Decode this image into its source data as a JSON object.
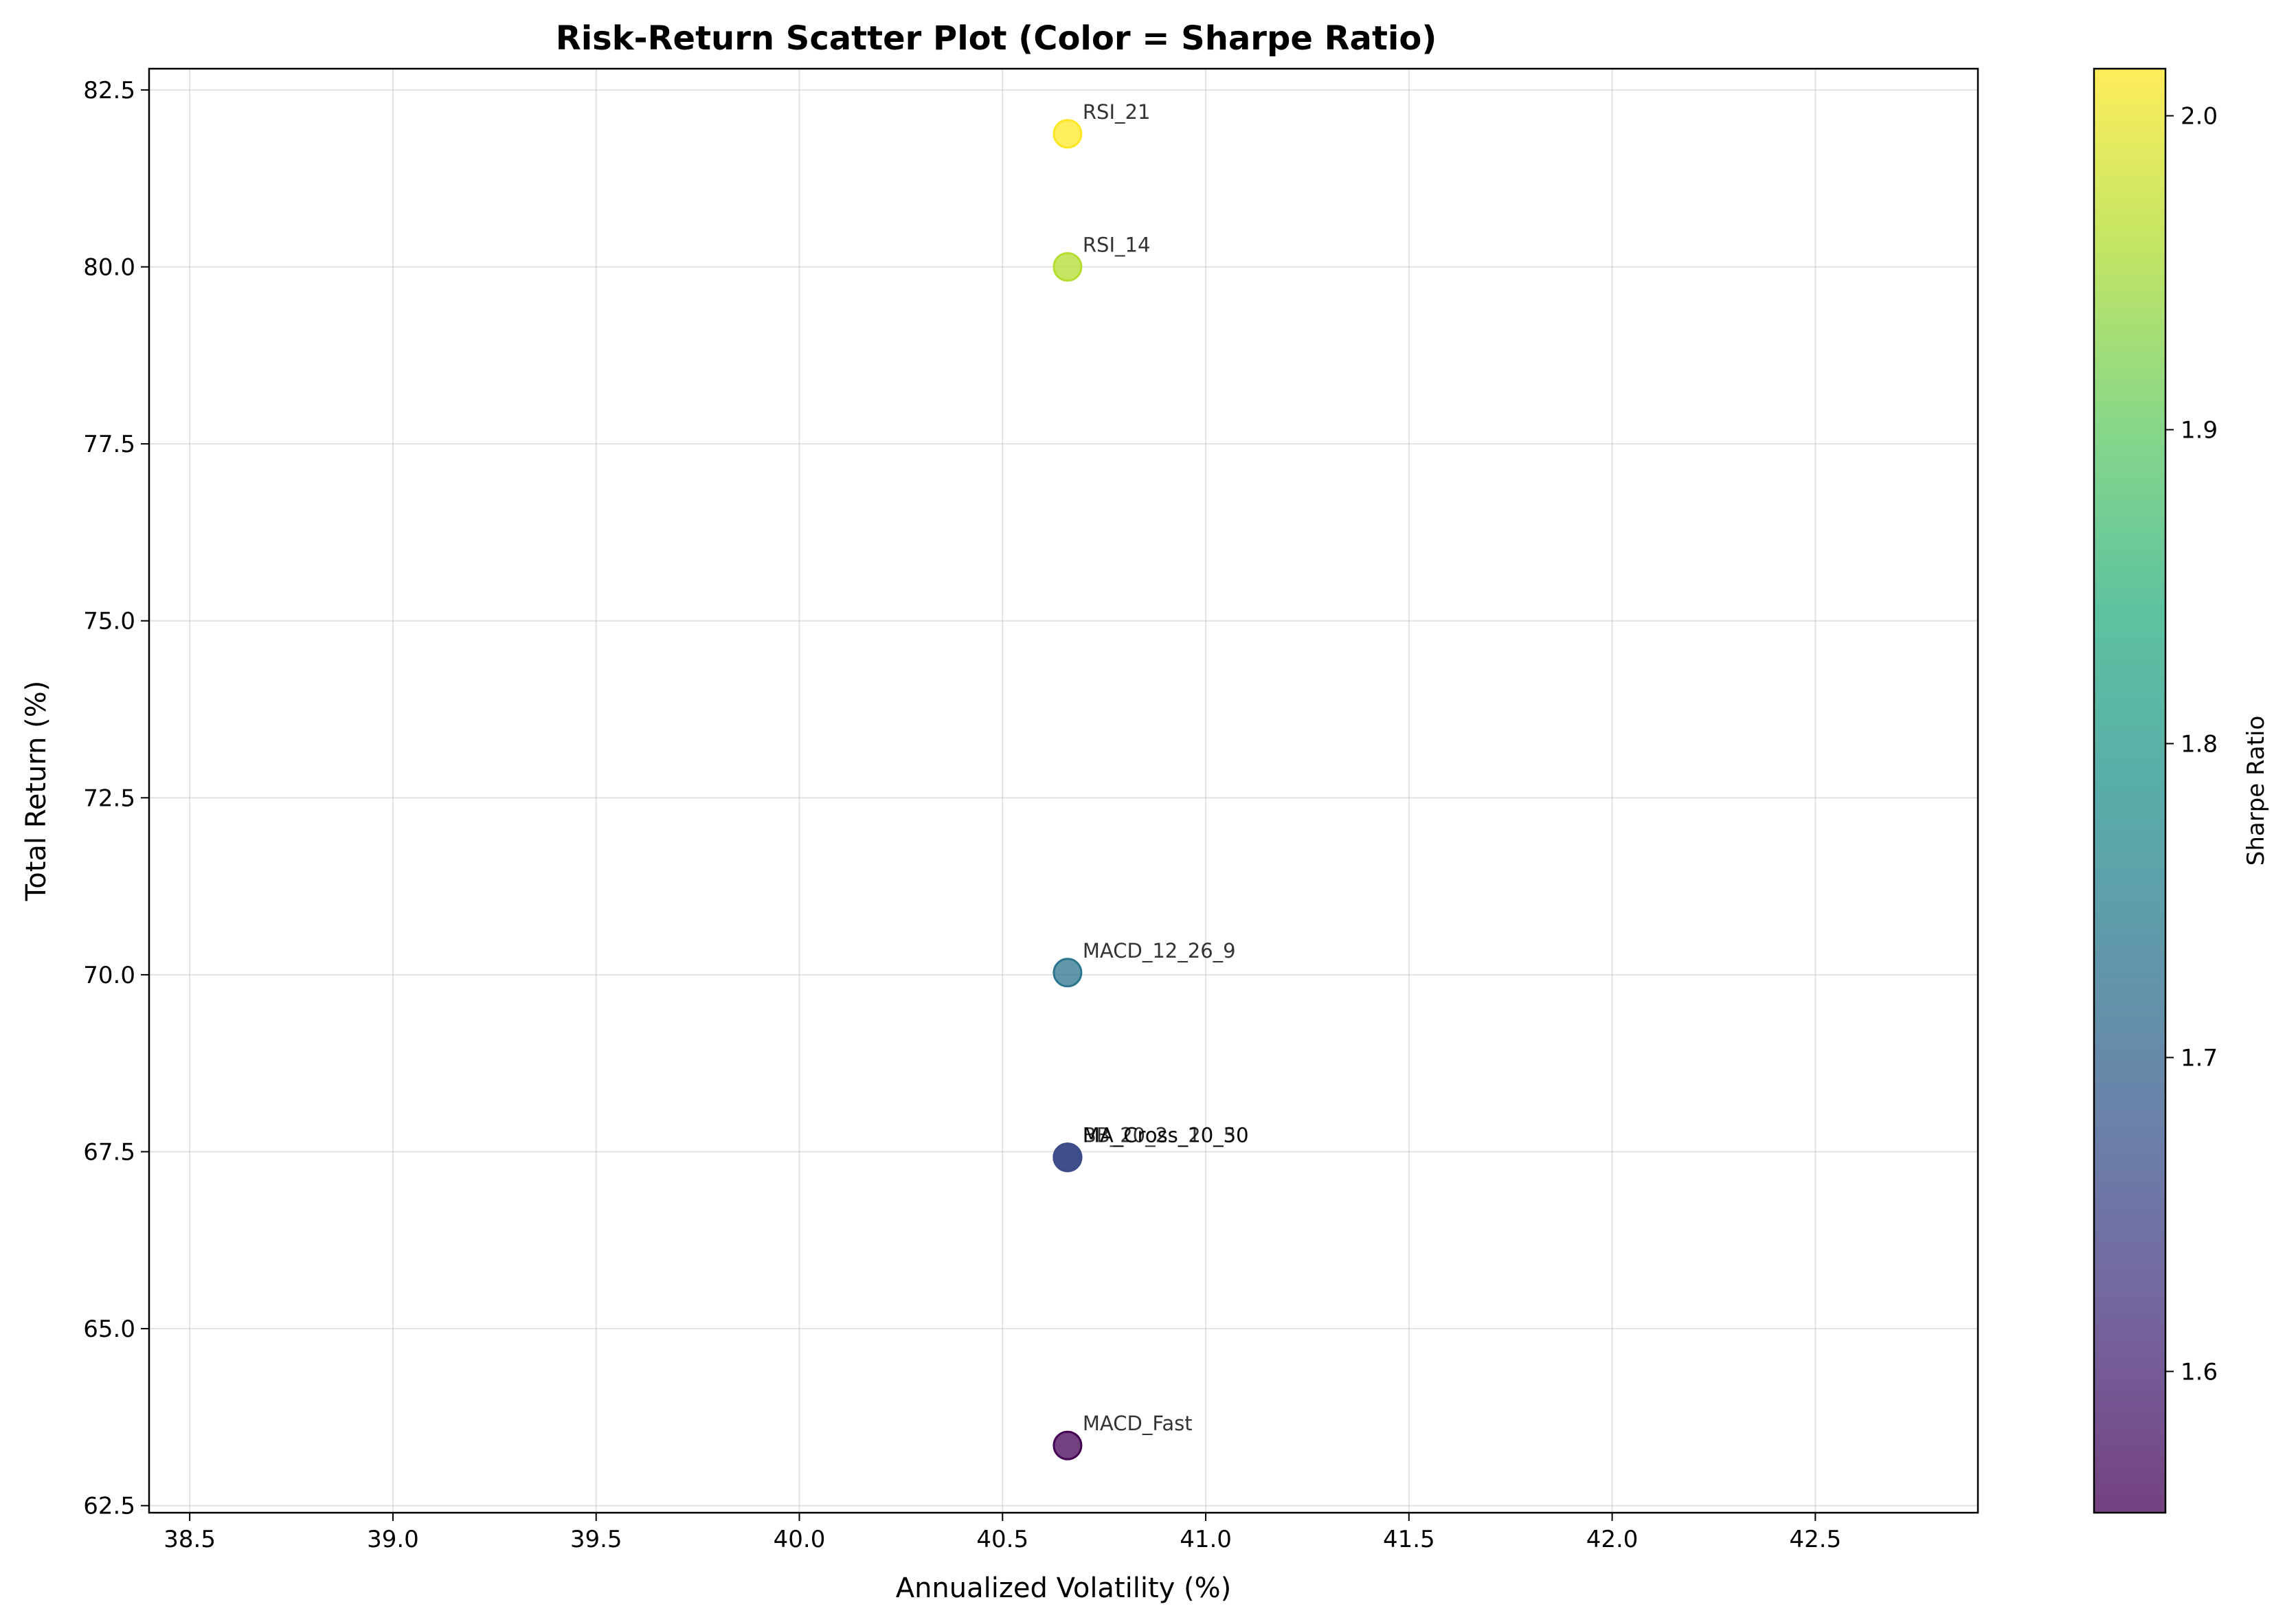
{
  "chart_data": {
    "type": "scatter",
    "title": "Risk-Return Scatter Plot (Color = Sharpe Ratio)",
    "xlabel": "Annualized Volatility (%)",
    "ylabel": "Total Return (%)",
    "xlim": [
      38.4,
      42.9
    ],
    "ylim": [
      62.4,
      82.8
    ],
    "xticks": [
      "38.5",
      "39.0",
      "39.5",
      "40.0",
      "40.5",
      "41.0",
      "41.5",
      "42.0",
      "42.5"
    ],
    "yticks": [
      "62.5",
      "65.0",
      "67.5",
      "70.0",
      "72.5",
      "75.0",
      "77.5",
      "80.0",
      "82.5"
    ],
    "grid": true,
    "colormap": "viridis",
    "colorbar": {
      "label": "Sharpe Ratio",
      "range": [
        1.555,
        2.015
      ],
      "ticks": [
        "1.6",
        "1.7",
        "1.8",
        "1.9",
        "2.0"
      ]
    },
    "points": [
      {
        "label": "RSI_21",
        "x": 40.66,
        "y": 81.88,
        "sharpe": 2.015
      },
      {
        "label": "RSI_14",
        "x": 40.66,
        "y": 80.0,
        "sharpe": 1.962
      },
      {
        "label": "MACD_12_26_9",
        "x": 40.66,
        "y": 70.03,
        "sharpe": 1.735
      },
      {
        "label": "MA_Cross_10_30",
        "x": 40.66,
        "y": 67.42,
        "sharpe": 1.66
      },
      {
        "label": "MA_Cross_20_50",
        "x": 40.66,
        "y": 67.42,
        "sharpe": 1.66
      },
      {
        "label": "BB_20_2",
        "x": 40.66,
        "y": 67.42,
        "sharpe": 1.66
      },
      {
        "label": "MACD_Fast",
        "x": 40.66,
        "y": 63.35,
        "sharpe": 1.555
      }
    ]
  }
}
